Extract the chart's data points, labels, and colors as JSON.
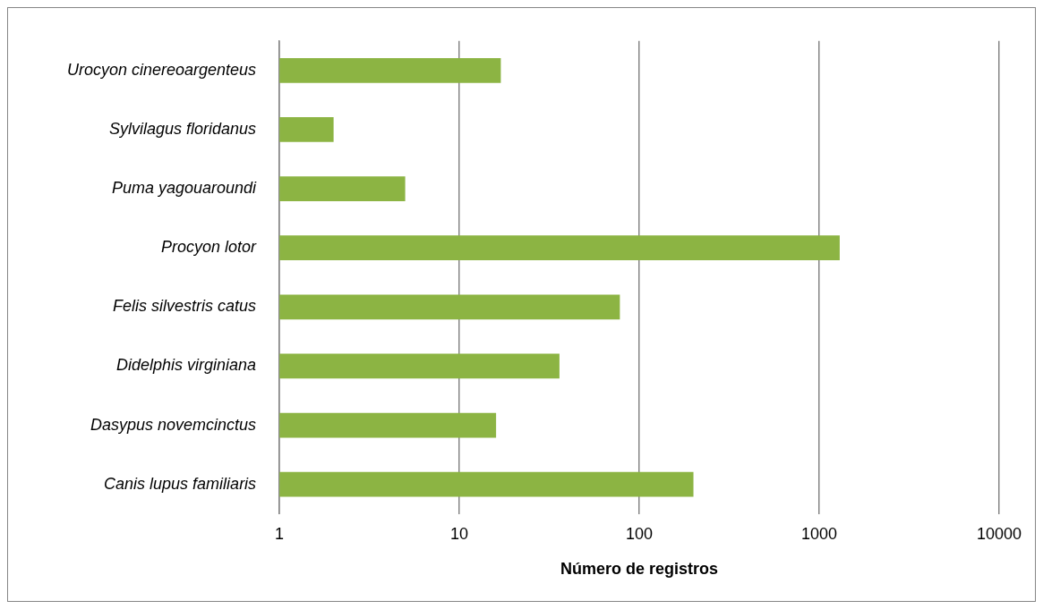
{
  "chart_data": {
    "type": "bar",
    "orientation": "horizontal",
    "log": "x",
    "xlabel": "Número de registros",
    "categories": [
      "Urocyon cinereoargenteus",
      "Sylvilagus floridanus",
      "Puma yagouaroundi",
      "Procyon lotor",
      "Felis silvestris catus",
      "Didelphis virginiana",
      "Dasypus novemcinctus",
      "Canis lupus familiaris"
    ],
    "values": [
      17,
      2,
      5,
      1300,
      78,
      36,
      16,
      200
    ],
    "color": "#8cb443",
    "xlim": [
      1,
      10000
    ],
    "xticks": [
      1,
      10,
      100,
      1000,
      10000
    ],
    "grid": "x"
  }
}
